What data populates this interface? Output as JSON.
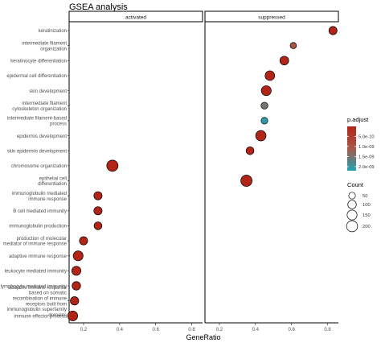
{
  "chart_data": {
    "type": "scatter",
    "title": "GSEA analysis",
    "xlabel": "GeneRatio",
    "facets": [
      "activated",
      "suppressed"
    ],
    "xlim": [
      0.12,
      0.86
    ],
    "xticks": [
      0.2,
      0.4,
      0.6,
      0.8
    ],
    "categories": [
      "keratinization",
      "intermediate filament organization",
      "keratinocyte differentiation",
      "epidermal cell differentiation",
      "skin development",
      "intermediate filament cytoskeleton organization",
      "intermediate filament-based process",
      "epidermis development",
      "skin epidermis development",
      "chromosome organization",
      "epithelial cell differentiation",
      "immunoglobulin mediated immune response",
      "B cell mediated immunity",
      "immunoglobulin production",
      "production of molecular mediator of immune response",
      "adaptive immune response",
      "leukocyte mediated immunity",
      "lymphocyte mediated immunity",
      "adaptive immune response based on somatic recombination of immune receptors built from immunoglobulin superfamily domains",
      "immune effector process"
    ],
    "category_labels": [
      [
        "keratinization"
      ],
      [
        "intermediate filament",
        "organization"
      ],
      [
        "keratinocyte differentiation"
      ],
      [
        "epidermal cell differentiation"
      ],
      [
        "skin development"
      ],
      [
        "intermediate filament",
        "cytoskeleton organization"
      ],
      [
        "intermediate filament-based",
        "process"
      ],
      [
        "epidermis development"
      ],
      [
        "skin epidermis development"
      ],
      [
        "chromosome organization"
      ],
      [
        "epithelial cell",
        "differentiation"
      ],
      [
        "immunoglobulin mediated",
        "immune response"
      ],
      [
        "B cell mediated immunity"
      ],
      [
        "immunoglobulin production"
      ],
      [
        "production of molecular",
        "mediator of immune response"
      ],
      [
        "adaptive immune response"
      ],
      [
        "leukocyte mediated immunity"
      ],
      [
        "lymphocyte mediated immunity"
      ],
      [
        "adaptive immune response",
        "based on somatic",
        "recombination of immune",
        "receptors built from",
        "immunoglobulin superfamily",
        "domains"
      ],
      [
        "immune effector process"
      ]
    ],
    "points": [
      {
        "facet": "activated",
        "category": "chromosome organization",
        "x": 0.36,
        "count": 210,
        "p_adjust": 1e-11
      },
      {
        "facet": "activated",
        "category": "immunoglobulin mediated immune response",
        "x": 0.28,
        "count": 90,
        "p_adjust": 1e-11
      },
      {
        "facet": "activated",
        "category": "B cell mediated immunity",
        "x": 0.28,
        "count": 90,
        "p_adjust": 1e-11
      },
      {
        "facet": "activated",
        "category": "immunoglobulin production",
        "x": 0.28,
        "count": 80,
        "p_adjust": 1e-11
      },
      {
        "facet": "activated",
        "category": "production of molecular mediator of immune response",
        "x": 0.2,
        "count": 90,
        "p_adjust": 1e-11
      },
      {
        "facet": "activated",
        "category": "adaptive immune response",
        "x": 0.17,
        "count": 150,
        "p_adjust": 1e-11
      },
      {
        "facet": "activated",
        "category": "leukocyte mediated immunity",
        "x": 0.16,
        "count": 120,
        "p_adjust": 1e-11
      },
      {
        "facet": "activated",
        "category": "lymphocyte mediated immunity",
        "x": 0.16,
        "count": 100,
        "p_adjust": 1e-11
      },
      {
        "facet": "activated",
        "category": "adaptive immune response based on somatic recombination of immune receptors built from immunoglobulin superfamily domains",
        "x": 0.15,
        "count": 95,
        "p_adjust": 1e-11
      },
      {
        "facet": "activated",
        "category": "immune effector process",
        "x": 0.14,
        "count": 150,
        "p_adjust": 1e-11
      },
      {
        "facet": "suppressed",
        "category": "keratinization",
        "x": 0.83,
        "count": 90,
        "p_adjust": 1e-11
      },
      {
        "facet": "suppressed",
        "category": "intermediate filament organization",
        "x": 0.61,
        "count": 40,
        "p_adjust": 1e-09
      },
      {
        "facet": "suppressed",
        "category": "keratinocyte differentiation",
        "x": 0.56,
        "count": 110,
        "p_adjust": 1e-11
      },
      {
        "facet": "suppressed",
        "category": "epidermal cell differentiation",
        "x": 0.48,
        "count": 140,
        "p_adjust": 1e-11
      },
      {
        "facet": "suppressed",
        "category": "skin development",
        "x": 0.46,
        "count": 150,
        "p_adjust": 1e-11
      },
      {
        "facet": "suppressed",
        "category": "intermediate filament cytoskeleton organization",
        "x": 0.45,
        "count": 55,
        "p_adjust": 1.5e-09
      },
      {
        "facet": "suppressed",
        "category": "intermediate filament-based process",
        "x": 0.45,
        "count": 50,
        "p_adjust": 2.1e-09
      },
      {
        "facet": "suppressed",
        "category": "epidermis development",
        "x": 0.43,
        "count": 170,
        "p_adjust": 1e-11
      },
      {
        "facet": "suppressed",
        "category": "skin epidermis development",
        "x": 0.37,
        "count": 80,
        "p_adjust": 1e-11
      },
      {
        "facet": "suppressed",
        "category": "epithelial cell differentiation",
        "x": 0.35,
        "count": 210,
        "p_adjust": 1e-11
      }
    ],
    "legend": {
      "position": "right",
      "color_title": "p.adjust",
      "color_ticks": [
        {
          "label": "5.0e-10",
          "value": 5e-10
        },
        {
          "label": "1.0e-09",
          "value": 1e-09
        },
        {
          "label": "1.5e-09",
          "value": 1.5e-09
        },
        {
          "label": "2.0e-09",
          "value": 2e-09
        }
      ],
      "color_range": [
        1e-11,
        2.2e-09
      ],
      "size_title": "Count",
      "size_ticks": [
        50,
        100,
        150,
        200
      ]
    },
    "colors": {
      "low": "#b22418",
      "mid": "#a65a4a",
      "high": "#1fa2b2"
    },
    "grid": false
  }
}
